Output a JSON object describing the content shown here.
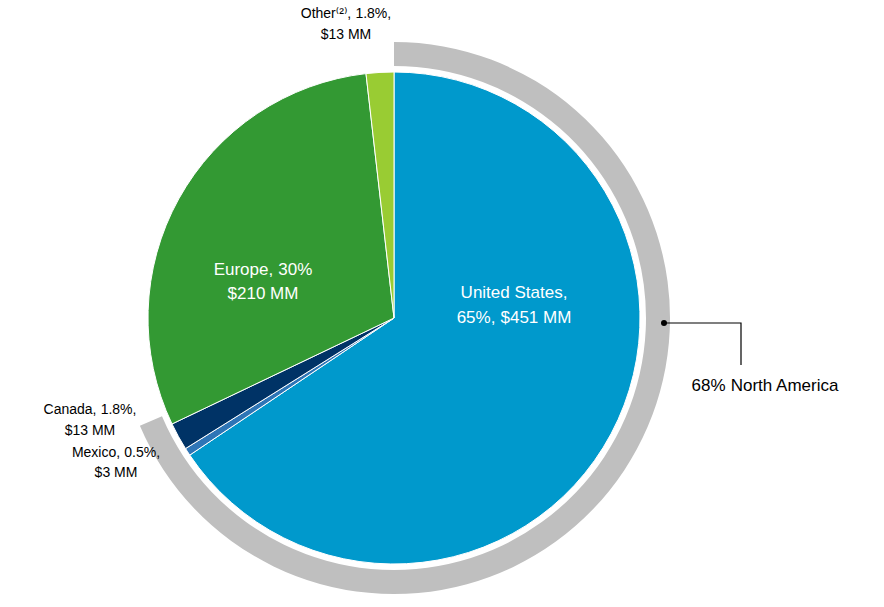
{
  "chart_data": {
    "type": "pie",
    "categories": [
      "United States,",
      "Mexico,",
      "Canada,",
      "Europe,",
      "Other⁽²⁾,"
    ],
    "values": [
      65,
      0.5,
      1.8,
      30,
      1.8
    ],
    "value_labels": [
      "65%,",
      "0.5%,",
      "1.8%,",
      "30%",
      "1.8%,"
    ],
    "amount_labels": [
      "$451 MM",
      "$3 MM",
      "$13 MM",
      "$210 MM",
      "$13 MM"
    ],
    "colors": [
      "#0099cc",
      "#2e75b6",
      "#003366",
      "#339933",
      "#99cc33"
    ],
    "data_labels": true,
    "groups": [
      {
        "label": "North America",
        "value": 68,
        "value_label": "68%"
      }
    ]
  }
}
